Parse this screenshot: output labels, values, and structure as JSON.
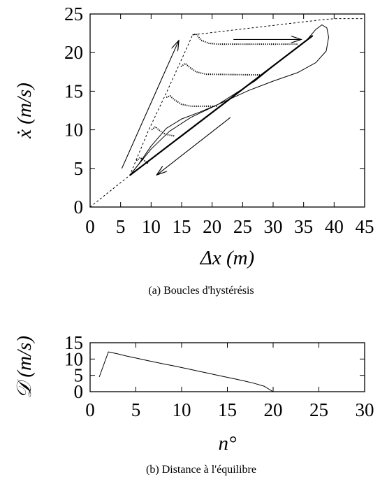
{
  "chart_data": [
    {
      "type": "line",
      "caption": "(a) Boucles d'hystérésis",
      "xlabel": "Δx (m)",
      "ylabel": "ẋ (m/s)",
      "xlim": [
        0,
        45
      ],
      "ylim": [
        0,
        25
      ],
      "x_ticks": [
        "0",
        "5",
        "10",
        "15",
        "20",
        "25",
        "30",
        "35",
        "40",
        "45"
      ],
      "y_ticks": [
        "0",
        "5",
        "10",
        "15",
        "20",
        "25"
      ],
      "grid": false,
      "series": [
        {
          "style": "dashed",
          "points": [
            [
              0,
              0
            ],
            [
              6.5,
              4.1
            ],
            [
              9.5,
              9.8
            ],
            [
              12.5,
              14.8
            ],
            [
              15.5,
              20
            ],
            [
              16.8,
              22.3
            ],
            [
              38.5,
              24.3
            ],
            [
              40.5,
              24.4
            ],
            [
              45,
              24.4
            ]
          ]
        },
        {
          "style": "thick-solid",
          "points": [
            [
              6.5,
              4.1
            ],
            [
              36.5,
              22.2
            ]
          ]
        },
        {
          "style": "dotted-bold",
          "points": [
            [
              16.8,
              22.3
            ],
            [
              17.4,
              22.4
            ],
            [
              18.2,
              21.6
            ],
            [
              19.5,
              21.2
            ],
            [
              21,
              21.1
            ],
            [
              34,
              21.1
            ]
          ]
        },
        {
          "style": "dotted-bold",
          "points": [
            [
              14.9,
              18.2
            ],
            [
              15.6,
              18.6
            ],
            [
              16.3,
              18.1
            ],
            [
              17.4,
              17.5
            ],
            [
              19,
              17.2
            ],
            [
              28,
              17.1
            ]
          ]
        },
        {
          "style": "dotted-bold",
          "points": [
            [
              12.5,
              14.2
            ],
            [
              13.1,
              14.4
            ],
            [
              13.8,
              13.9
            ],
            [
              15,
              13.3
            ],
            [
              16.6,
              13.05
            ],
            [
              20.8,
              13.05
            ]
          ]
        },
        {
          "style": "dotted-bold",
          "points": [
            [
              10.1,
              10.0
            ],
            [
              10.7,
              10.4
            ],
            [
              11.4,
              9.9
            ],
            [
              12.4,
              9.4
            ],
            [
              13.8,
              9.2
            ]
          ]
        },
        {
          "style": "dotted-bold",
          "points": [
            [
              7.6,
              6.0
            ],
            [
              8.2,
              6.4
            ],
            [
              8.9,
              6.0
            ],
            [
              9.6,
              5.6
            ]
          ]
        },
        {
          "style": "thin-solid",
          "points": [
            [
              6.5,
              4.1
            ],
            [
              10,
              7.5
            ],
            [
              13,
              9.8
            ],
            [
              16.5,
              11.6
            ],
            [
              21,
              13.3
            ],
            [
              26,
              15.1
            ],
            [
              30,
              16.3
            ],
            [
              34,
              17.4
            ],
            [
              37,
              18.7
            ],
            [
              38.7,
              20.2
            ],
            [
              39.1,
              22
            ],
            [
              38.8,
              23.2
            ],
            [
              38,
              23.6
            ],
            [
              37,
              23.0
            ],
            [
              35.5,
              21.6
            ],
            [
              32,
              19.5
            ],
            [
              27,
              16.3
            ],
            [
              21,
              13.3
            ],
            [
              18,
              12.3
            ],
            [
              15,
              11.4
            ],
            [
              12.5,
              10.2
            ],
            [
              10,
              7.9
            ],
            [
              8,
              5.6
            ],
            [
              6.5,
              4.1
            ]
          ]
        }
      ],
      "annotations": [
        {
          "type": "arrow",
          "from": [
            5.2,
            5
          ],
          "to": [
            14.5,
            21.5
          ]
        },
        {
          "type": "arrow",
          "from": [
            23.5,
            21.7
          ],
          "to": [
            34.5,
            21.7
          ]
        },
        {
          "type": "arrow",
          "from": [
            23,
            11.6
          ],
          "to": [
            11,
            4.2
          ]
        }
      ]
    },
    {
      "type": "line",
      "caption": "(b) Distance à l'équilibre",
      "xlabel": "n°",
      "ylabel": "𝒟 (m/s)",
      "xlim": [
        0,
        30
      ],
      "ylim": [
        0,
        15
      ],
      "x_ticks": [
        "0",
        "5",
        "10",
        "15",
        "20",
        "25",
        "30"
      ],
      "y_ticks": [
        "0",
        "5",
        "10",
        "15"
      ],
      "grid": false,
      "series": [
        {
          "style": "thin-solid",
          "points": [
            [
              1,
              4.5
            ],
            [
              2,
              12.2
            ],
            [
              3,
              11.6
            ],
            [
              4,
              10.9
            ],
            [
              5,
              10.3
            ],
            [
              6,
              9.7
            ],
            [
              7,
              9.1
            ],
            [
              8,
              8.5
            ],
            [
              9,
              8.0
            ],
            [
              10,
              7.4
            ],
            [
              11,
              6.8
            ],
            [
              12,
              6.2
            ],
            [
              13,
              5.6
            ],
            [
              14,
              5.0
            ],
            [
              15,
              4.4
            ],
            [
              16,
              3.8
            ],
            [
              17,
              3.2
            ],
            [
              18,
              2.5
            ],
            [
              19,
              1.7
            ],
            [
              20,
              0
            ]
          ]
        }
      ]
    }
  ]
}
